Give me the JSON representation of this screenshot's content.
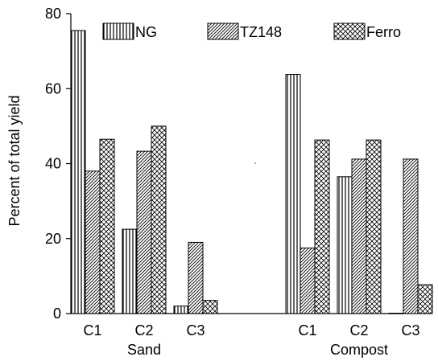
{
  "chart_data": {
    "type": "bar",
    "ylabel": "Percent of total yield",
    "ylim": [
      0,
      80
    ],
    "yticks": [
      0,
      20,
      40,
      60,
      80
    ],
    "legend_position": "top",
    "groups": [
      {
        "label": "Sand",
        "categories": [
          "C1",
          "C2",
          "C3"
        ]
      },
      {
        "label": "Compost",
        "categories": [
          "C1",
          "C2",
          "C3"
        ]
      }
    ],
    "series": [
      {
        "name": "NG",
        "pattern": "vertical-lines",
        "values": [
          75.5,
          22.5,
          2.0,
          63.8,
          36.5,
          0.1
        ]
      },
      {
        "name": "TZ148",
        "pattern": "diagonal-hatch",
        "values": [
          38.0,
          43.3,
          19.0,
          17.5,
          41.2,
          41.2
        ]
      },
      {
        "name": "Ferro",
        "pattern": "crosshatch",
        "values": [
          46.5,
          50.0,
          3.5,
          46.3,
          46.3,
          7.7
        ]
      }
    ]
  }
}
